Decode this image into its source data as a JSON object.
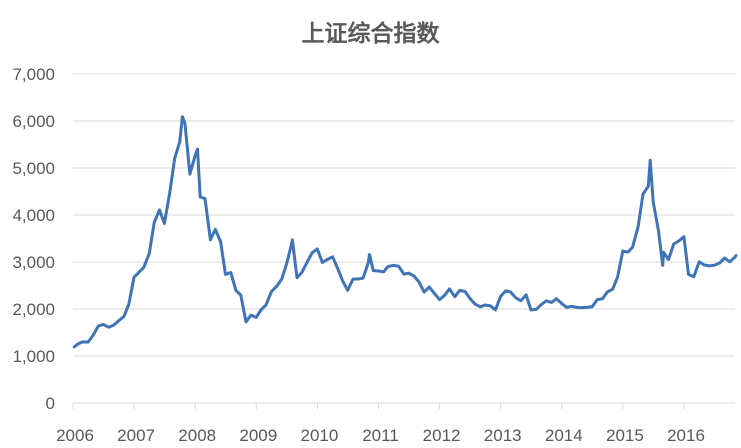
{
  "chart_data": {
    "type": "line",
    "title": "上证综合指数",
    "xlabel": "",
    "ylabel": "",
    "ylim": [
      0,
      7000
    ],
    "yticks": [
      "0",
      "1,000",
      "2,000",
      "3,000",
      "4,000",
      "5,000",
      "6,000",
      "7,000"
    ],
    "xticks": [
      "2006",
      "2007",
      "2008",
      "2009",
      "2010",
      "2011",
      "2012",
      "2013",
      "2014",
      "2015",
      "2016"
    ],
    "grid": "horizontal",
    "legend": "none",
    "line_color": "#3f74b6",
    "series": [
      {
        "x": [
          "2006-01-04",
          "2006-01-31",
          "2006-02-28",
          "2006-03-31",
          "2006-04-30",
          "2006-05-31",
          "2006-06-30",
          "2006-07-31",
          "2006-08-31",
          "2006-09-30",
          "2006-10-31",
          "2006-11-30",
          "2006-12-31",
          "2007-01-31",
          "2007-02-28",
          "2007-03-31",
          "2007-04-30",
          "2007-05-31",
          "2007-06-30",
          "2007-07-31",
          "2007-08-31",
          "2007-09-30",
          "2007-10-16",
          "2007-10-31",
          "2007-11-30",
          "2007-12-31",
          "2008-01-15",
          "2008-01-31",
          "2008-02-29",
          "2008-03-31",
          "2008-04-30",
          "2008-05-31",
          "2008-06-30",
          "2008-07-31",
          "2008-08-31",
          "2008-09-30",
          "2008-10-31",
          "2008-11-30",
          "2008-12-31",
          "2009-01-31",
          "2009-02-28",
          "2009-03-31",
          "2009-04-30",
          "2009-05-31",
          "2009-06-30",
          "2009-07-31",
          "2009-08-04",
          "2009-08-31",
          "2009-09-30",
          "2009-10-31",
          "2009-11-30",
          "2009-12-31",
          "2010-01-31",
          "2010-02-28",
          "2010-03-31",
          "2010-04-30",
          "2010-05-31",
          "2010-06-30",
          "2010-07-31",
          "2010-08-31",
          "2010-09-30",
          "2010-10-31",
          "2010-11-08",
          "2010-11-30",
          "2010-12-31",
          "2011-01-31",
          "2011-02-28",
          "2011-03-31",
          "2011-04-30",
          "2011-05-31",
          "2011-06-30",
          "2011-07-31",
          "2011-08-31",
          "2011-09-30",
          "2011-10-31",
          "2011-11-30",
          "2011-12-31",
          "2012-01-31",
          "2012-02-29",
          "2012-03-31",
          "2012-04-30",
          "2012-05-31",
          "2012-06-30",
          "2012-07-31",
          "2012-08-31",
          "2012-09-30",
          "2012-10-31",
          "2012-11-30",
          "2012-12-31",
          "2013-01-31",
          "2013-02-28",
          "2013-03-31",
          "2013-04-30",
          "2013-05-31",
          "2013-06-30",
          "2013-07-31",
          "2013-08-31",
          "2013-09-30",
          "2013-10-31",
          "2013-11-30",
          "2013-12-31",
          "2014-01-31",
          "2014-02-28",
          "2014-03-31",
          "2014-04-30",
          "2014-05-31",
          "2014-06-30",
          "2014-07-31",
          "2014-08-31",
          "2014-09-30",
          "2014-10-31",
          "2014-11-30",
          "2014-12-31",
          "2015-01-31",
          "2015-02-28",
          "2015-03-31",
          "2015-04-30",
          "2015-05-31",
          "2015-06-12",
          "2015-06-30",
          "2015-07-31",
          "2015-08-26",
          "2015-08-31",
          "2015-09-30",
          "2015-10-31",
          "2015-11-30",
          "2015-12-31",
          "2016-01-28",
          "2016-02-29",
          "2016-03-31",
          "2016-04-30",
          "2016-05-31",
          "2016-06-30",
          "2016-07-31",
          "2016-08-31",
          "2016-09-30",
          "2016-10-31",
          "2016-11-10"
        ],
        "y": [
          1180,
          1258,
          1299,
          1298,
          1440,
          1641,
          1672,
          1612,
          1658,
          1752,
          1837,
          2099,
          2675,
          2786,
          2881,
          3183,
          3841,
          4109,
          3820,
          4471,
          5218,
          5552,
          6092,
          5954,
          4871,
          5261,
          5400,
          4383,
          4348,
          3472,
          3693,
          3433,
          2736,
          2775,
          2397,
          2293,
          1728,
          1871,
          1821,
          1990,
          2082,
          2373,
          2477,
          2633,
          2959,
          3412,
          3471,
          2667,
          2779,
          2996,
          3195,
          3277,
          2989,
          3051,
          3110,
          2871,
          2592,
          2398,
          2638,
          2638,
          2656,
          2979,
          3159,
          2820,
          2808,
          2790,
          2905,
          2928,
          2911,
          2743,
          2762,
          2701,
          2568,
          2359,
          2468,
          2333,
          2199,
          2292,
          2428,
          2262,
          2396,
          2372,
          2225,
          2103,
          2047,
          2086,
          2068,
          1980,
          2269,
          2385,
          2365,
          2236,
          2177,
          2300,
          1979,
          1994,
          2098,
          2174,
          2141,
          2220,
          2116,
          2033,
          2056,
          2033,
          2026,
          2039,
          2048,
          2202,
          2217,
          2364,
          2420,
          2683,
          3234,
          3210,
          3310,
          3748,
          4442,
          4612,
          5166,
          4277,
          3664,
          2927,
          3206,
          3053,
          3383,
          3445,
          3539,
          2738,
          2688,
          3004,
          2938,
          2917,
          2930,
          2979,
          3085,
          3005,
          3100,
          3150
        ]
      }
    ]
  }
}
